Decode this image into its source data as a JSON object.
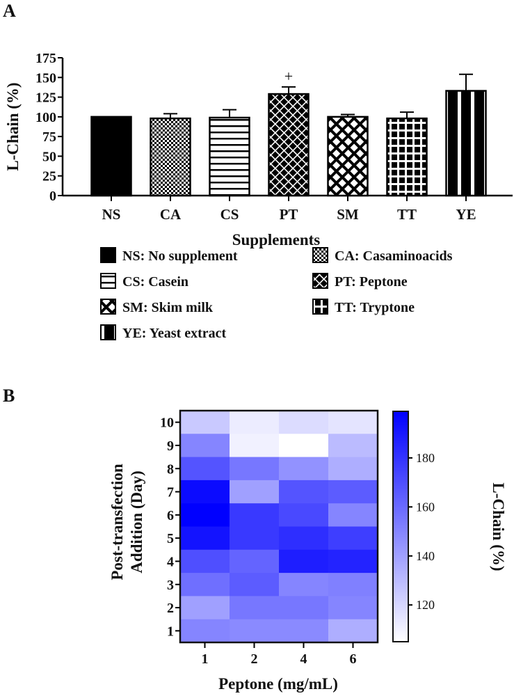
{
  "chart_data": [
    {
      "panel_label": "A",
      "type": "bar",
      "title": "",
      "xlabel": "Supplements",
      "ylabel": "L-Chain (%)",
      "ylim": [
        0,
        175
      ],
      "yticks": [
        0,
        25,
        50,
        75,
        100,
        125,
        150,
        175
      ],
      "categories": [
        "NS",
        "CA",
        "CS",
        "PT",
        "SM",
        "TT",
        "YE"
      ],
      "values": [
        100,
        98,
        99,
        129,
        100,
        98,
        133
      ],
      "error_upper": [
        0,
        6,
        10,
        9,
        3,
        8,
        21
      ],
      "annotations": [
        {
          "category": "PT",
          "text": "+"
        }
      ],
      "legend": [
        {
          "code": "NS",
          "text": "NS: No supplement",
          "pattern": "solid"
        },
        {
          "code": "CA",
          "text": "CA: Casaminoacids",
          "pattern": "checker"
        },
        {
          "code": "CS",
          "text": "CS: Casein",
          "pattern": "horizontal-stripes"
        },
        {
          "code": "PT",
          "text": "PT: Peptone",
          "pattern": "diagonal-brick"
        },
        {
          "code": "SM",
          "text": "SM: Skim milk",
          "pattern": "diamond-lattice"
        },
        {
          "code": "TT",
          "text": "TT: Tryptone",
          "pattern": "grid"
        },
        {
          "code": "YE",
          "text": "YE: Yeast extract",
          "pattern": "vertical-stripes"
        }
      ],
      "legend_placement": "below"
    },
    {
      "panel_label": "B",
      "type": "heatmap",
      "xlabel": "Peptone (mg/mL)",
      "ylabel_lines": [
        "Post-transfection",
        "Addition (Day)"
      ],
      "x": [
        "1",
        "2",
        "4",
        "6"
      ],
      "y": [
        "10",
        "9",
        "8",
        "7",
        "6",
        "5",
        "4",
        "3",
        "2",
        "1"
      ],
      "values": [
        [
          125,
          112,
          118,
          115
        ],
        [
          150,
          110,
          105,
          130
        ],
        [
          168,
          155,
          145,
          135
        ],
        [
          195,
          140,
          168,
          165
        ],
        [
          199,
          178,
          172,
          150
        ],
        [
          192,
          178,
          182,
          176
        ],
        [
          170,
          162,
          188,
          186
        ],
        [
          158,
          165,
          150,
          152
        ],
        [
          140,
          155,
          155,
          150
        ],
        [
          150,
          148,
          148,
          135
        ]
      ],
      "colorbar": {
        "label": "L-Chain (%)",
        "range": [
          105,
          199
        ],
        "ticks": [
          120,
          140,
          160,
          180
        ],
        "low_color": "#ffffff",
        "high_color": "#0000ff"
      }
    }
  ]
}
